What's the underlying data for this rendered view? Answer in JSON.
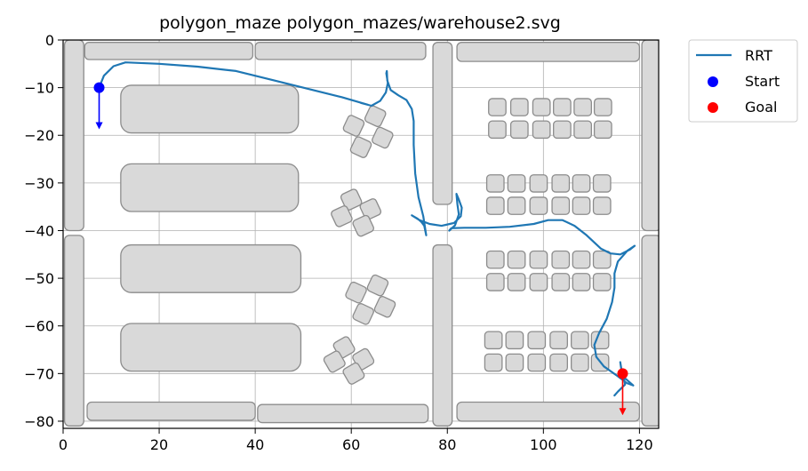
{
  "chart_data": {
    "type": "line",
    "title": "polygon_maze polygon_mazes/warehouse2.svg",
    "xlabel": "",
    "ylabel": "",
    "xlim": [
      0,
      124
    ],
    "ylim": [
      -81.5,
      0
    ],
    "grid": true,
    "x_ticks": [
      0,
      20,
      40,
      60,
      80,
      100,
      120
    ],
    "y_ticks": [
      0,
      -10,
      -20,
      -30,
      -40,
      -50,
      -60,
      -70,
      -80
    ],
    "x_tick_labels": [
      "0",
      "20",
      "40",
      "60",
      "80",
      "100",
      "120"
    ],
    "y_tick_labels": [
      "0",
      "−10",
      "−20",
      "−30",
      "−40",
      "−50",
      "−60",
      "−70",
      "−80"
    ],
    "legend_position": "outside-top-right",
    "legend": [
      {
        "label": "RRT",
        "kind": "line",
        "color": "#1f77b4"
      },
      {
        "label": "Start",
        "kind": "marker",
        "color": "#0000ff"
      },
      {
        "label": "Goal",
        "kind": "marker",
        "color": "#ff0000"
      }
    ],
    "colors": {
      "path": "#1f77b4",
      "start": "#0000ff",
      "goal": "#ff0000",
      "obstacle_fill": "#d9d9d9",
      "obstacle_stroke": "#8c8c8c",
      "grid": "#b0b0b0"
    },
    "start": {
      "x": 7.5,
      "y": -10,
      "heading": [
        0,
        -8
      ]
    },
    "goal": {
      "x": 116.5,
      "y": -70,
      "heading": [
        0,
        -8
      ]
    },
    "obstacles": [
      {
        "x": 0.3,
        "y": 0,
        "w": 4,
        "h": 40
      },
      {
        "x": 0.3,
        "y": -41,
        "w": 4,
        "h": 40
      },
      {
        "x": 4.5,
        "y": -0.5,
        "w": 35,
        "h": 3.6
      },
      {
        "x": 40,
        "y": -0.5,
        "w": 35.5,
        "h": 3.6
      },
      {
        "x": 12,
        "y": -9.5,
        "w": 37,
        "h": 10
      },
      {
        "x": 12,
        "y": -26,
        "w": 37,
        "h": 10
      },
      {
        "x": 12,
        "y": -43,
        "w": 37.5,
        "h": 10
      },
      {
        "x": 12,
        "y": -59.5,
        "w": 37.5,
        "h": 10
      },
      {
        "x": 5,
        "y": -76,
        "w": 35,
        "h": 3.8
      },
      {
        "x": 40.5,
        "y": -76.5,
        "w": 35.5,
        "h": 3.8
      },
      {
        "x": 77,
        "y": -0.5,
        "w": 4,
        "h": 34
      },
      {
        "x": 77,
        "y": -43,
        "w": 4,
        "h": 38
      },
      {
        "x": 82,
        "y": -0.5,
        "w": 38,
        "h": 4
      },
      {
        "x": 82,
        "y": -76,
        "w": 38,
        "h": 4
      },
      {
        "x": 120.5,
        "y": 0,
        "w": 4,
        "h": 40
      },
      {
        "x": 120.5,
        "y": -41,
        "w": 4,
        "h": 40
      }
    ],
    "boxes": {
      "size": 3.6,
      "rows": [
        {
          "y": -12.3,
          "xs": [
            88.6,
            93.2,
            97.8,
            102.1,
            106.4,
            110.6
          ]
        },
        {
          "y": -17,
          "xs": [
            88.6,
            93.2,
            97.8,
            102.1,
            106.4,
            110.6
          ]
        },
        {
          "y": -28.3,
          "xs": [
            88.2,
            92.6,
            97.2,
            101.8,
            106.1,
            110.4
          ]
        },
        {
          "y": -33,
          "xs": [
            88.2,
            92.6,
            97.2,
            101.8,
            106.1,
            110.4
          ]
        },
        {
          "y": -44.3,
          "xs": [
            88.2,
            92.6,
            97.2,
            101.8,
            106.1,
            110.4
          ]
        },
        {
          "y": -49,
          "xs": [
            88.2,
            92.6,
            97.2,
            101.8,
            106.1,
            110.4
          ]
        },
        {
          "y": -61.2,
          "xs": [
            87.8,
            92.2,
            96.8,
            101.4,
            105.8,
            110.0
          ]
        },
        {
          "y": -65.9,
          "xs": [
            87.8,
            92.2,
            96.8,
            101.4,
            105.8,
            110.0
          ]
        }
      ]
    },
    "rotated_boxes": [
      {
        "cx": 60.5,
        "cy": -18,
        "a": 25
      },
      {
        "cx": 65,
        "cy": -16,
        "a": 25
      },
      {
        "cx": 66.5,
        "cy": -20.5,
        "a": 25
      },
      {
        "cx": 62,
        "cy": -22.5,
        "a": 25
      },
      {
        "cx": 60,
        "cy": -33.5,
        "a": -25
      },
      {
        "cx": 64,
        "cy": -35.5,
        "a": -25
      },
      {
        "cx": 58,
        "cy": -37,
        "a": -25
      },
      {
        "cx": 62.5,
        "cy": -39,
        "a": -25
      },
      {
        "cx": 61,
        "cy": -53,
        "a": 25
      },
      {
        "cx": 65.5,
        "cy": -51.5,
        "a": 25
      },
      {
        "cx": 67,
        "cy": -56,
        "a": 25
      },
      {
        "cx": 62.5,
        "cy": -57.5,
        "a": 25
      },
      {
        "cx": 58.5,
        "cy": -64.5,
        "a": -30
      },
      {
        "cx": 62.5,
        "cy": -67,
        "a": -30
      },
      {
        "cx": 56.5,
        "cy": -67.5,
        "a": -30
      },
      {
        "cx": 60.5,
        "cy": -70,
        "a": -30
      }
    ],
    "series": [
      {
        "type": "line",
        "points": [
          [
            7.5,
            -10
          ],
          [
            8.5,
            -7.5
          ],
          [
            10.5,
            -5.5
          ],
          [
            13,
            -4.7
          ],
          [
            20,
            -5
          ],
          [
            28,
            -5.6
          ],
          [
            36,
            -6.5
          ],
          [
            44,
            -8.5
          ],
          [
            52,
            -10.5
          ],
          [
            58,
            -12
          ],
          [
            63.5,
            -13.6
          ],
          [
            62,
            -13.2
          ],
          [
            64.2,
            -13.8
          ],
          [
            66,
            -12.8
          ],
          [
            67.2,
            -11
          ],
          [
            67.6,
            -9
          ],
          [
            67.3,
            -7
          ],
          [
            67.4,
            -6.5
          ],
          [
            67.5,
            -8.5
          ],
          [
            68.2,
            -10.5
          ],
          [
            69.8,
            -11.6
          ],
          [
            71.5,
            -12.6
          ],
          [
            72.6,
            -14.5
          ],
          [
            73,
            -17
          ],
          [
            73,
            -22
          ],
          [
            73.3,
            -28
          ],
          [
            74,
            -33
          ],
          [
            75,
            -37
          ],
          [
            75.6,
            -41
          ],
          [
            75.2,
            -39
          ],
          [
            74.6,
            -38.2
          ],
          [
            73.8,
            -37.5
          ],
          [
            72.6,
            -36.8
          ],
          [
            74.2,
            -37.8
          ],
          [
            76.3,
            -38.6
          ],
          [
            78.8,
            -39
          ],
          [
            81.4,
            -38.4
          ],
          [
            82.8,
            -37
          ],
          [
            83,
            -35.2
          ],
          [
            82.4,
            -33.5
          ],
          [
            81.9,
            -32.3
          ],
          [
            82.1,
            -34.5
          ],
          [
            82.4,
            -36.6
          ],
          [
            81.6,
            -38.9
          ],
          [
            80.4,
            -40
          ],
          [
            80.8,
            -39.5
          ],
          [
            83.5,
            -39.4
          ],
          [
            88,
            -39.4
          ],
          [
            93,
            -39.2
          ],
          [
            98,
            -38.6
          ],
          [
            101,
            -37.8
          ],
          [
            104,
            -37.8
          ],
          [
            106.5,
            -39
          ],
          [
            109,
            -41
          ],
          [
            112,
            -43.8
          ],
          [
            114,
            -44.8
          ],
          [
            116,
            -45
          ],
          [
            118,
            -44
          ],
          [
            119,
            -43.2
          ],
          [
            117.5,
            -44.2
          ],
          [
            115.5,
            -46.5
          ],
          [
            114.8,
            -49
          ],
          [
            114.8,
            -52
          ],
          [
            114.3,
            -55
          ],
          [
            113.2,
            -58.5
          ],
          [
            111.6,
            -61.5
          ],
          [
            110.6,
            -64
          ],
          [
            111,
            -66.5
          ],
          [
            112.6,
            -68.5
          ],
          [
            115.4,
            -70.5
          ],
          [
            117.4,
            -72
          ],
          [
            118.7,
            -72.5
          ],
          [
            117,
            -71
          ],
          [
            116.3,
            -69.5
          ],
          [
            116,
            -67.6
          ],
          [
            116.2,
            -69
          ],
          [
            116.7,
            -70.8
          ],
          [
            117,
            -72.3
          ],
          [
            115.5,
            -73.8
          ],
          [
            114.8,
            -74.6
          ]
        ]
      }
    ]
  }
}
